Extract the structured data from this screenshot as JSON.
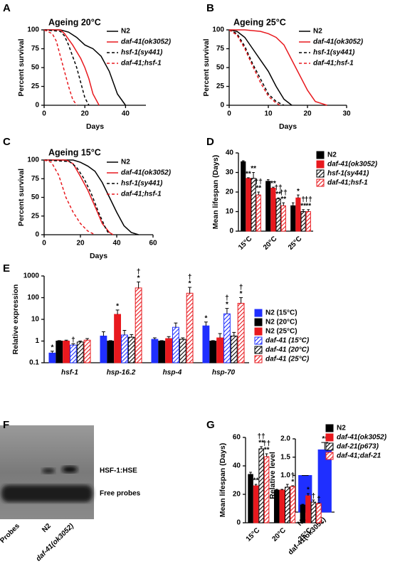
{
  "chart_data": [
    {
      "panel": "A",
      "type": "line",
      "title": "Ageing 20°C",
      "xlabel": "Days",
      "ylabel": "Percent survival",
      "xlim": [
        0,
        50
      ],
      "xticks": [
        0,
        20,
        40
      ],
      "ylim": [
        0,
        100
      ],
      "yticks": [
        0,
        25,
        50,
        75,
        100
      ],
      "legend": "top-right",
      "series": [
        {
          "name": "N2",
          "color": "#000000",
          "dash": false,
          "italic": false,
          "x": [
            0,
            8,
            12,
            16,
            20,
            24,
            28,
            32,
            36,
            40
          ],
          "values": [
            100,
            100,
            97,
            90,
            80,
            75,
            65,
            45,
            15,
            0
          ]
        },
        {
          "name": "daf-41(ok3052)",
          "color": "#e8191e",
          "dash": false,
          "italic": true,
          "x": [
            0,
            8,
            10,
            14,
            18,
            20,
            22,
            24,
            27
          ],
          "values": [
            100,
            100,
            95,
            80,
            62,
            50,
            35,
            15,
            0
          ]
        },
        {
          "name": "hsf-1(sy441)",
          "color": "#000000",
          "dash": true,
          "italic": true,
          "x": [
            0,
            8,
            10,
            12,
            14,
            16,
            18,
            20,
            22
          ],
          "values": [
            100,
            98,
            92,
            80,
            65,
            50,
            30,
            10,
            0
          ]
        },
        {
          "name": "daf-41;hsf-1",
          "color": "#e8191e",
          "dash": true,
          "italic": true,
          "x": [
            0,
            4,
            6,
            8,
            10,
            12,
            14,
            16
          ],
          "values": [
            100,
            95,
            85,
            65,
            45,
            25,
            8,
            0
          ]
        }
      ]
    },
    {
      "panel": "B",
      "type": "line",
      "title": "Ageing 25°C",
      "xlabel": "Days",
      "ylabel": "Percent survival",
      "xlim": [
        0,
        30
      ],
      "xticks": [
        0,
        10,
        20,
        30
      ],
      "ylim": [
        0,
        100
      ],
      "yticks": [
        0,
        25,
        50,
        75,
        100
      ],
      "legend": "top-right",
      "series": [
        {
          "name": "N2",
          "color": "#000000",
          "dash": false,
          "italic": false,
          "x": [
            0,
            2,
            4,
            6,
            8,
            10,
            12,
            14,
            16
          ],
          "values": [
            100,
            98,
            90,
            75,
            60,
            45,
            25,
            8,
            0
          ]
        },
        {
          "name": "daf-41(ok3052)",
          "color": "#e8191e",
          "dash": false,
          "italic": true,
          "x": [
            0,
            4,
            8,
            10,
            12,
            14,
            16,
            18,
            20,
            22,
            25
          ],
          "values": [
            100,
            100,
            98,
            95,
            90,
            80,
            60,
            40,
            20,
            5,
            0
          ]
        },
        {
          "name": "hsf-1(sy441)",
          "color": "#000000",
          "dash": true,
          "italic": true,
          "x": [
            0,
            2,
            4,
            6,
            8,
            10,
            12,
            14
          ],
          "values": [
            100,
            95,
            78,
            55,
            35,
            15,
            5,
            0
          ]
        },
        {
          "name": "daf-41;hsf-1",
          "color": "#e8191e",
          "dash": true,
          "italic": true,
          "x": [
            0,
            2,
            4,
            6,
            8,
            10,
            12,
            13
          ],
          "values": [
            100,
            93,
            75,
            52,
            30,
            12,
            3,
            0
          ]
        }
      ]
    },
    {
      "panel": "C",
      "type": "line",
      "title": "Ageing 15°C",
      "xlabel": "Days",
      "ylabel": "Percent survival",
      "xlim": [
        0,
        60
      ],
      "xticks": [
        0,
        20,
        40,
        60
      ],
      "ylim": [
        0,
        100
      ],
      "yticks": [
        0,
        25,
        50,
        75,
        100
      ],
      "legend": "top-right",
      "series": [
        {
          "name": "N2",
          "color": "#000000",
          "dash": false,
          "italic": false,
          "x": [
            0,
            16,
            20,
            24,
            28,
            32,
            36,
            40,
            44,
            48,
            52
          ],
          "values": [
            100,
            100,
            97,
            92,
            85,
            70,
            50,
            30,
            12,
            3,
            0
          ]
        },
        {
          "name": "daf-41(ok3052)",
          "color": "#e8191e",
          "dash": false,
          "italic": true,
          "x": [
            0,
            12,
            16,
            20,
            24,
            28,
            32,
            36,
            38
          ],
          "values": [
            100,
            100,
            95,
            78,
            60,
            38,
            15,
            3,
            0
          ]
        },
        {
          "name": "hsf-1(sy441)",
          "color": "#000000",
          "dash": true,
          "italic": true,
          "x": [
            0,
            14,
            18,
            22,
            26,
            30,
            34,
            36
          ],
          "values": [
            100,
            98,
            90,
            75,
            55,
            30,
            8,
            0
          ]
        },
        {
          "name": "daf-41;hsf-1",
          "color": "#e8191e",
          "dash": true,
          "italic": true,
          "x": [
            0,
            4,
            8,
            12,
            16,
            20,
            24,
            28
          ],
          "values": [
            100,
            97,
            80,
            50,
            30,
            15,
            5,
            0
          ]
        }
      ]
    },
    {
      "panel": "D",
      "type": "bar",
      "ylabel": "Mean lifespan (Days)",
      "categories": [
        "15°C",
        "20°C",
        "25°C"
      ],
      "ylim": [
        0,
        40
      ],
      "yticks": [
        0,
        10,
        20,
        30,
        40
      ],
      "legend": "top-right",
      "series": [
        {
          "name": "N2",
          "color": "#000000",
          "hatch": false,
          "italic": false,
          "values": [
            35.5,
            25.5,
            13
          ],
          "errors": [
            0.5,
            0.8,
            1.5
          ],
          "annotations": [
            [],
            [],
            []
          ]
        },
        {
          "name": "daf-41(ok3052)",
          "color": "#e8191e",
          "hatch": false,
          "italic": true,
          "values": [
            27,
            22,
            17
          ],
          "errors": [
            0.3,
            0.5,
            1.5
          ],
          "annotations": [
            [
              "**"
            ],
            [
              "**"
            ],
            [
              "*"
            ]
          ]
        },
        {
          "name": "hsf-1(sy441)",
          "color": "#000000",
          "hatch": true,
          "italic": true,
          "values": [
            27,
            16.5,
            10
          ],
          "errors": [
            3,
            0.5,
            1
          ],
          "annotations": [
            [
              "**"
            ],
            [
              "††",
              "**"
            ],
            [
              "†",
              "**"
            ]
          ]
        },
        {
          "name": "daf-41;hsf-1",
          "color": "#e8191e",
          "hatch": true,
          "italic": true,
          "values": [
            18.5,
            13,
            10
          ],
          "errors": [
            1.5,
            1.5,
            1
          ],
          "annotations": [
            [
              "††",
              "**"
            ],
            [
              "††",
              "**"
            ],
            [
              "††",
              "**"
            ]
          ]
        }
      ]
    },
    {
      "panel": "E",
      "type": "bar",
      "ylabel": "Relative expression",
      "log_scale": true,
      "categories_italic": true,
      "categories": [
        "hsf-1",
        "hsp-16.2",
        "hsp-4",
        "hsp-70"
      ],
      "ylim": [
        0.1,
        1000
      ],
      "yticks": [
        0.1,
        1,
        10,
        100,
        1000
      ],
      "legend": "bottom-right",
      "series": [
        {
          "name": "N2 (15°C)",
          "color": "#1f2fff",
          "hatch": false,
          "italic": false,
          "values": [
            0.28,
            1.7,
            1.2,
            5
          ],
          "errors": [
            0.06,
            1,
            0.2,
            2.5
          ],
          "annotations": [
            [
              "*"
            ],
            [],
            [],
            [
              "*"
            ]
          ]
        },
        {
          "name": "N2 (20°C)",
          "color": "#000000",
          "hatch": false,
          "italic": false,
          "values": [
            1,
            1,
            1,
            1
          ],
          "errors": [
            0.05,
            0.05,
            0.05,
            0.05
          ],
          "annotations": [
            [],
            [],
            [],
            []
          ]
        },
        {
          "name": "N2 (25°C)",
          "color": "#e8191e",
          "hatch": false,
          "italic": false,
          "values": [
            1,
            17,
            1.3,
            1.4
          ],
          "errors": [
            0.1,
            10,
            0.3,
            0.8
          ],
          "annotations": [
            [],
            [
              "*"
            ],
            [],
            []
          ]
        },
        {
          "name": "daf-41 (15°C)",
          "color": "#1f2fff",
          "hatch": true,
          "italic": true,
          "values": [
            0.65,
            1.9,
            4.3,
            18
          ],
          "errors": [
            0.1,
            1.2,
            2.5,
            14
          ],
          "annotations": [
            [
              "†"
            ],
            [],
            [],
            [
              "†",
              "*"
            ]
          ]
        },
        {
          "name": "daf-41 (20°C)",
          "color": "#000000",
          "hatch": true,
          "italic": true,
          "values": [
            0.9,
            1.5,
            1.2,
            1.7
          ],
          "errors": [
            0.1,
            0.5,
            0.2,
            0.8
          ],
          "annotations": [
            [],
            [],
            [],
            []
          ]
        },
        {
          "name": "daf-41 (25°C)",
          "color": "#e8191e",
          "hatch": true,
          "italic": true,
          "values": [
            1.1,
            280,
            160,
            55
          ],
          "errors": [
            0.2,
            250,
            140,
            45
          ],
          "annotations": [
            [],
            [
              "†",
              "*"
            ],
            [
              "†",
              "*"
            ],
            [
              "†",
              "*"
            ]
          ]
        }
      ]
    },
    {
      "panel": "F",
      "type": "bar",
      "ylabel": "Relative level",
      "categories": [
        "N2",
        "daf-41(ok3052)"
      ],
      "ylim": [
        0,
        2
      ],
      "yticks": [
        {
          "value": 0,
          "label": "0.0"
        },
        {
          "value": 0.5,
          "label": "0.5"
        },
        {
          "value": 1,
          "label": "1.0"
        },
        {
          "value": 1.5,
          "label": "1.5"
        },
        {
          "value": 2,
          "label": "2.0"
        }
      ],
      "series": [
        {
          "color": "#1f2fff",
          "hatch": false,
          "values": [
            1,
            1.7
          ],
          "errors": [
            0,
            0.2
          ],
          "annotations": [
            [],
            [
              "**"
            ]
          ]
        }
      ],
      "gel": {
        "bands": [
          "HSF-1:HSE",
          "Free probes"
        ],
        "lanes": [
          "Probes",
          "N2",
          "daf-41(ok3052)"
        ]
      }
    },
    {
      "panel": "G",
      "type": "bar",
      "ylabel": "Mean lifespan (Days)",
      "categories": [
        "15°C",
        "20°C",
        "25°C"
      ],
      "ylim": [
        0,
        60
      ],
      "yticks": [
        0,
        20,
        40,
        60
      ],
      "legend": "top-right",
      "series": [
        {
          "name": "N2",
          "color": "#000000",
          "hatch": false,
          "italic": false,
          "values": [
            34,
            23,
            12.5
          ],
          "errors": [
            1.5,
            0.5,
            0.5
          ],
          "annotations": [
            [],
            [],
            []
          ]
        },
        {
          "name": "daf-41(ok3052)",
          "color": "#e8191e",
          "hatch": false,
          "italic": true,
          "values": [
            26,
            23,
            19
          ],
          "errors": [
            1,
            0.5,
            1.5
          ],
          "annotations": [
            [
              "**"
            ],
            [],
            [
              "*"
            ]
          ]
        },
        {
          "name": "daf-21(p673)",
          "color": "#000000",
          "hatch": true,
          "italic": true,
          "values": [
            52,
            25,
            14.5
          ],
          "errors": [
            1.5,
            2,
            1.5
          ],
          "annotations": [
            [
              "††",
              "**"
            ],
            [],
            [
              "†"
            ]
          ]
        },
        {
          "name": "daf-41;daf-21",
          "color": "#e8191e",
          "hatch": true,
          "italic": true,
          "values": [
            46.5,
            25.5,
            13.5
          ],
          "errors": [
            2,
            0.5,
            0.5
          ],
          "annotations": [
            [
              "††",
              "**"
            ],
            [
              "†",
              "*"
            ],
            [
              "†"
            ]
          ]
        }
      ]
    }
  ]
}
